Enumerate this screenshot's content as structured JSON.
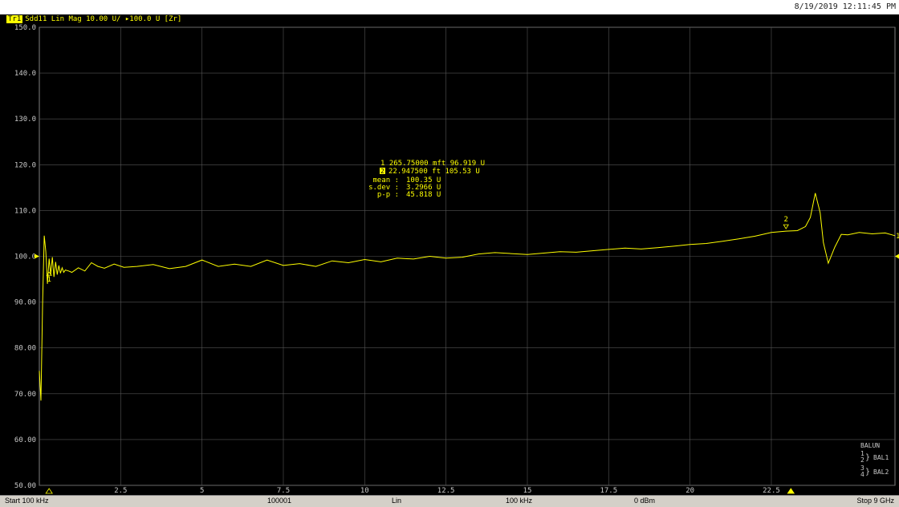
{
  "header": {
    "datetime": "8/19/2019 12:11:45 PM",
    "trace_id": "Tr1",
    "trace_info": "Sdd11 Lin Mag 10.00 U/ ▸100.0 U [Zr]"
  },
  "status_bar": {
    "start": "Start 100 kHz",
    "points": "100001",
    "sweep_type": "Lin",
    "ifbw": "100 kHz",
    "power": "0 dBm",
    "stop": "Stop 9 GHz"
  },
  "marker_readout": {
    "m1": "1  265.75000 mft  96.919 U",
    "m2": "22.947500 ft  105.53 U",
    "m2_tag": "2",
    "stats": [
      {
        "label": "mean :",
        "value": "100.35 U"
      },
      {
        "label": "s.dev :",
        "value": "3.2966 U"
      },
      {
        "label": "p-p :",
        "value": "45.818 U"
      }
    ]
  },
  "balun_legend": {
    "title": "BALUN",
    "rows": [
      {
        "ports": [
          "1",
          "2"
        ],
        "label": "BAL1"
      },
      {
        "ports": [
          "3",
          "4"
        ],
        "label": "BAL2"
      }
    ]
  },
  "colors": {
    "trace": "#ffff00",
    "grid": "#555555",
    "background": "#000000"
  },
  "chart_data": {
    "type": "line",
    "title": "",
    "xlabel": "",
    "ylabel": "",
    "xlim": [
      0,
      26.3
    ],
    "ylim": [
      50,
      150
    ],
    "grid": true,
    "y_ticks": [
      "150.0",
      "140.0",
      "130.0",
      "120.0",
      "110.0",
      "100.0",
      "90.00",
      "80.00",
      "70.00",
      "60.00",
      "50.00"
    ],
    "y_tick_values": [
      150,
      140,
      130,
      120,
      110,
      100,
      90,
      80,
      70,
      60,
      50
    ],
    "x_ticks": [
      "2.5",
      "5",
      "7.5",
      "10",
      "12.5",
      "15",
      "17.5",
      "20",
      "22.5"
    ],
    "x_tick_values": [
      2.5,
      5,
      7.5,
      10,
      12.5,
      15,
      17.5,
      20,
      22.5
    ],
    "reference_value": 100,
    "series": [
      {
        "x": [
          0,
          0.05,
          0.1,
          0.15,
          0.2,
          0.25,
          0.3,
          0.35,
          0.4,
          0.45,
          0.5,
          0.55,
          0.6,
          0.65,
          0.7,
          0.75,
          0.8,
          0.9,
          1.0,
          1.2,
          1.4,
          1.6,
          1.8,
          2.0,
          2.3,
          2.6,
          3.0,
          3.5,
          4.0,
          4.5,
          5.0,
          5.5,
          6.0,
          6.5,
          7.0,
          7.5,
          8.0,
          8.5,
          9.0,
          9.5,
          10.0,
          10.5,
          11.0,
          11.5,
          12.0,
          12.5,
          13.0,
          13.5,
          14.0,
          14.5,
          15.0,
          15.5,
          16.0,
          16.5,
          17.0,
          17.5,
          18.0,
          18.5,
          19.0,
          19.5,
          20.0,
          20.5,
          21.0,
          21.5,
          22.0,
          22.5,
          22.95,
          23.3,
          23.55,
          23.7,
          23.85,
          24.0,
          24.1,
          24.25,
          24.45,
          24.65,
          24.85,
          25.2,
          25.6,
          26.0,
          26.3
        ],
        "y": [
          75,
          68.5,
          90,
          104.5,
          101,
          94,
          99.5,
          96,
          99.8,
          95.5,
          98.8,
          96,
          98,
          96.3,
          97.5,
          96.5,
          97,
          96.8,
          96.5,
          97.5,
          96.8,
          98.6,
          97.8,
          97.4,
          98.3,
          97.6,
          97.8,
          98.2,
          97.3,
          97.8,
          99.2,
          97.8,
          98.3,
          97.8,
          99.2,
          98.0,
          98.4,
          97.8,
          99.0,
          98.6,
          99.3,
          98.8,
          99.6,
          99.4,
          100.0,
          99.6,
          99.8,
          100.5,
          100.8,
          100.6,
          100.4,
          100.7,
          101.0,
          100.9,
          101.2,
          101.5,
          101.8,
          101.6,
          101.9,
          102.2,
          102.6,
          102.8,
          103.3,
          103.8,
          104.4,
          105.2,
          105.5,
          105.6,
          106.5,
          108.5,
          113.8,
          109.5,
          103,
          98.5,
          102,
          104.8,
          104.7,
          105.2,
          104.9,
          105.1,
          104.5
        ]
      }
    ],
    "markers": [
      {
        "id": "1",
        "x": 0.3,
        "y": 96.9
      },
      {
        "id": "2",
        "x": 22.95,
        "y": 105.5
      }
    ],
    "stimulus_markers": [
      {
        "x": 0.3
      },
      {
        "x": 23.1
      }
    ]
  }
}
